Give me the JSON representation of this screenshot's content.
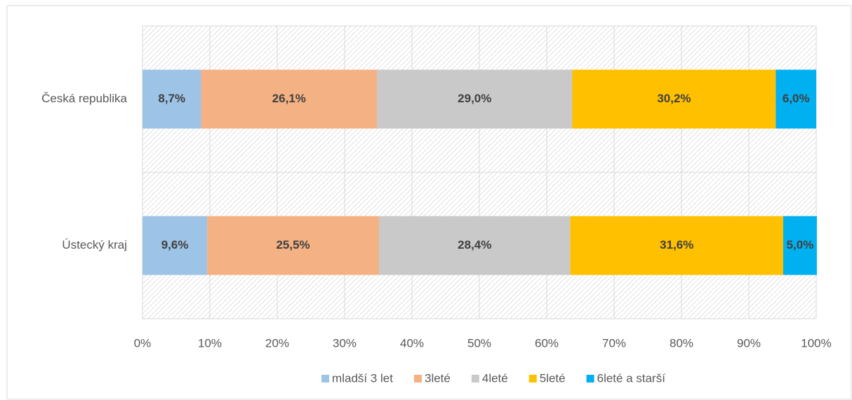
{
  "chart_data": {
    "type": "stacked-bar-horizontal",
    "categories": [
      "Česká republika",
      "Ústecký kraj"
    ],
    "series": [
      {
        "name": "mladší 3 let",
        "color": "#9dc3e6",
        "values": [
          8.7,
          9.6
        ],
        "value_labels": [
          "8,7%",
          "9,6%"
        ]
      },
      {
        "name": "3leté",
        "color": "#f4b183",
        "values": [
          26.1,
          25.5
        ],
        "value_labels": [
          "26,1%",
          "25,5%"
        ]
      },
      {
        "name": "4leté",
        "color": "#c9c9c9",
        "values": [
          29.0,
          28.4
        ],
        "value_labels": [
          "29,0%",
          "28,4%"
        ]
      },
      {
        "name": "5leté",
        "color": "#ffc000",
        "values": [
          30.2,
          31.6
        ],
        "value_labels": [
          "30,2%",
          "31,6%"
        ]
      },
      {
        "name": "6leté a starší",
        "color": "#00b0f0",
        "values": [
          6.0,
          5.0
        ],
        "value_labels": [
          "6,0%",
          "5,0%"
        ]
      }
    ],
    "xlim": [
      0,
      100
    ],
    "xticks": [
      {
        "value": 0,
        "label": "0%"
      },
      {
        "value": 10,
        "label": "10%"
      },
      {
        "value": 20,
        "label": "20%"
      },
      {
        "value": 30,
        "label": "30%"
      },
      {
        "value": 40,
        "label": "40%"
      },
      {
        "value": 50,
        "label": "50%"
      },
      {
        "value": 60,
        "label": "60%"
      },
      {
        "value": 70,
        "label": "70%"
      },
      {
        "value": 80,
        "label": "80%"
      },
      {
        "value": 90,
        "label": "90%"
      },
      {
        "value": 100,
        "label": "100%"
      }
    ],
    "grid": true,
    "legend": "bottom"
  }
}
